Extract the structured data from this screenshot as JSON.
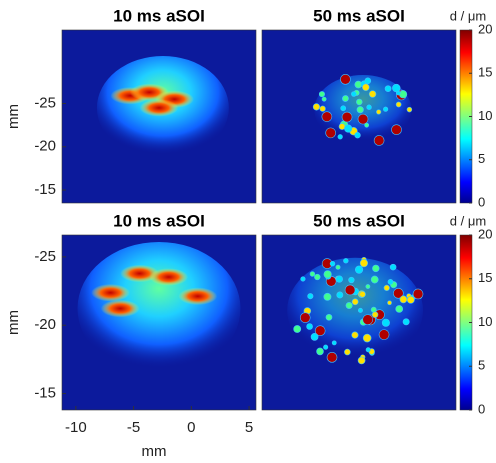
{
  "chart_data": [
    {
      "type": "heatmap",
      "title": "10 ms aSOI",
      "y_label": "mm",
      "ylim": [
        -33.5,
        -13.5
      ],
      "yticks": [
        -25,
        -20,
        -15
      ],
      "y_inverted": true
    },
    {
      "type": "heatmap",
      "title": "50 ms aSOI"
    },
    {
      "type": "colorbar",
      "label": "d / μm",
      "colormap": "jet",
      "ylim": [
        0,
        20
      ],
      "yticks": [
        0,
        5,
        10,
        15,
        20
      ]
    },
    {
      "type": "heatmap",
      "title": "10 ms aSOI",
      "x_label": "mm",
      "y_label": "mm",
      "xlim": [
        -11.2,
        5.6
      ],
      "xticks": [
        -10,
        -5,
        0,
        5
      ],
      "ylim": [
        -26.6,
        -13.8
      ],
      "yticks": [
        -25,
        -20,
        -15
      ],
      "y_inverted": true
    },
    {
      "type": "heatmap",
      "title": "50 ms aSOI"
    },
    {
      "type": "colorbar",
      "label": "d / μm",
      "colormap": "jet",
      "ylim": [
        0,
        20
      ],
      "yticks": [
        0,
        5,
        10,
        15,
        20
      ]
    }
  ]
}
